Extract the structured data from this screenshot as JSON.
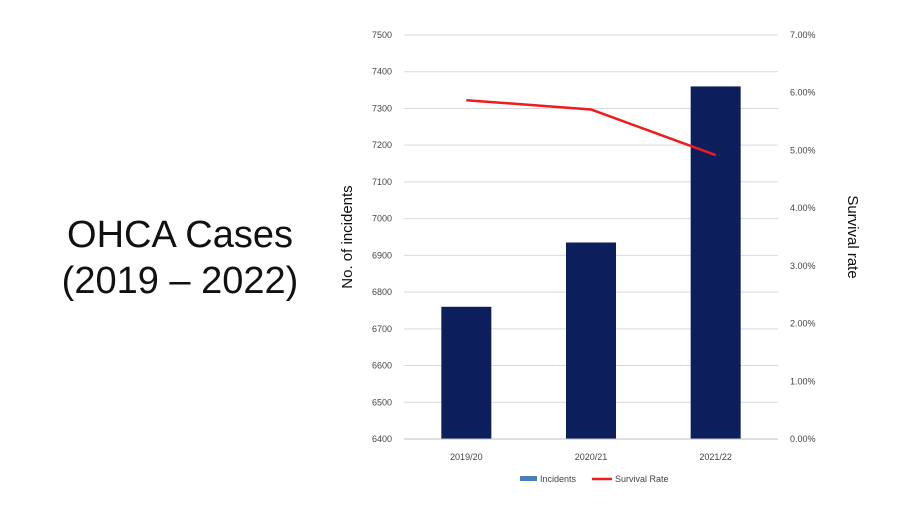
{
  "slide": {
    "title_line1": "OHCA Cases",
    "title_line2": "(2019 – 2022)"
  },
  "chart_data": {
    "type": "bar",
    "categories": [
      "2019/20",
      "2020/21",
      "2021/22"
    ],
    "series": [
      {
        "name": "Incidents",
        "type": "bar",
        "axis": "left",
        "values": [
          6760,
          6935,
          7360
        ],
        "color": "#0c1f5c"
      },
      {
        "name": "Survival Rate",
        "type": "line",
        "axis": "right",
        "values": [
          0.0587,
          0.0571,
          0.0492
        ],
        "color": "#ee1c1c"
      }
    ],
    "ylabel": "No. of incidents",
    "y2label": "Survival rate",
    "ylim": [
      6400,
      7500
    ],
    "y2lim": [
      0,
      0.07
    ],
    "yticks": [
      "6400",
      "6500",
      "6600",
      "6700",
      "6800",
      "6900",
      "7000",
      "7100",
      "7200",
      "7300",
      "7400",
      "7500"
    ],
    "y2ticks": [
      "0.00%",
      "1.00%",
      "2.00%",
      "3.00%",
      "4.00%",
      "5.00%",
      "6.00%",
      "7.00%"
    ],
    "grid": true,
    "legend_position": "bottom"
  }
}
